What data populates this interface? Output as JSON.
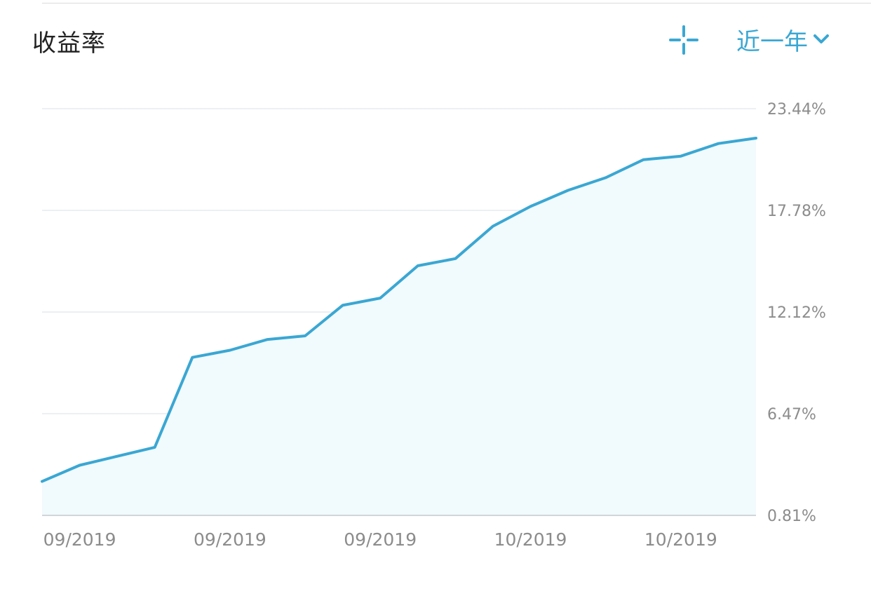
{
  "header": {
    "title": "收益率",
    "range_label": "近一年"
  },
  "colors": {
    "accent": "#3aa7d3",
    "fill": "#f1fafd",
    "grid": "#e6ecef",
    "axis": "#cfd6da",
    "tick_text": "#8c8c8c"
  },
  "icons": {
    "crosshair": "crosshair-icon",
    "dropdown": "chevron-down-icon"
  },
  "chart_data": {
    "type": "area",
    "title": "收益率",
    "xlabel": "",
    "ylabel": "",
    "y_unit": "%",
    "ylim": [
      0.81,
      23.44
    ],
    "y_ticks": [
      "23.44%",
      "17.78%",
      "12.12%",
      "6.47%",
      "0.81%"
    ],
    "x_tick_labels": [
      "09/2019",
      "09/2019",
      "09/2019",
      "10/2019",
      "10/2019"
    ],
    "x_tick_index": [
      1,
      5,
      9,
      13,
      17
    ],
    "grid": true,
    "legend": "none",
    "series": [
      {
        "values": [
          2.7,
          3.6,
          4.1,
          4.6,
          9.6,
          10.0,
          10.6,
          10.8,
          12.5,
          12.9,
          14.7,
          15.1,
          16.9,
          18.0,
          18.9,
          19.6,
          20.6,
          20.8,
          21.5,
          21.8
        ]
      }
    ]
  }
}
